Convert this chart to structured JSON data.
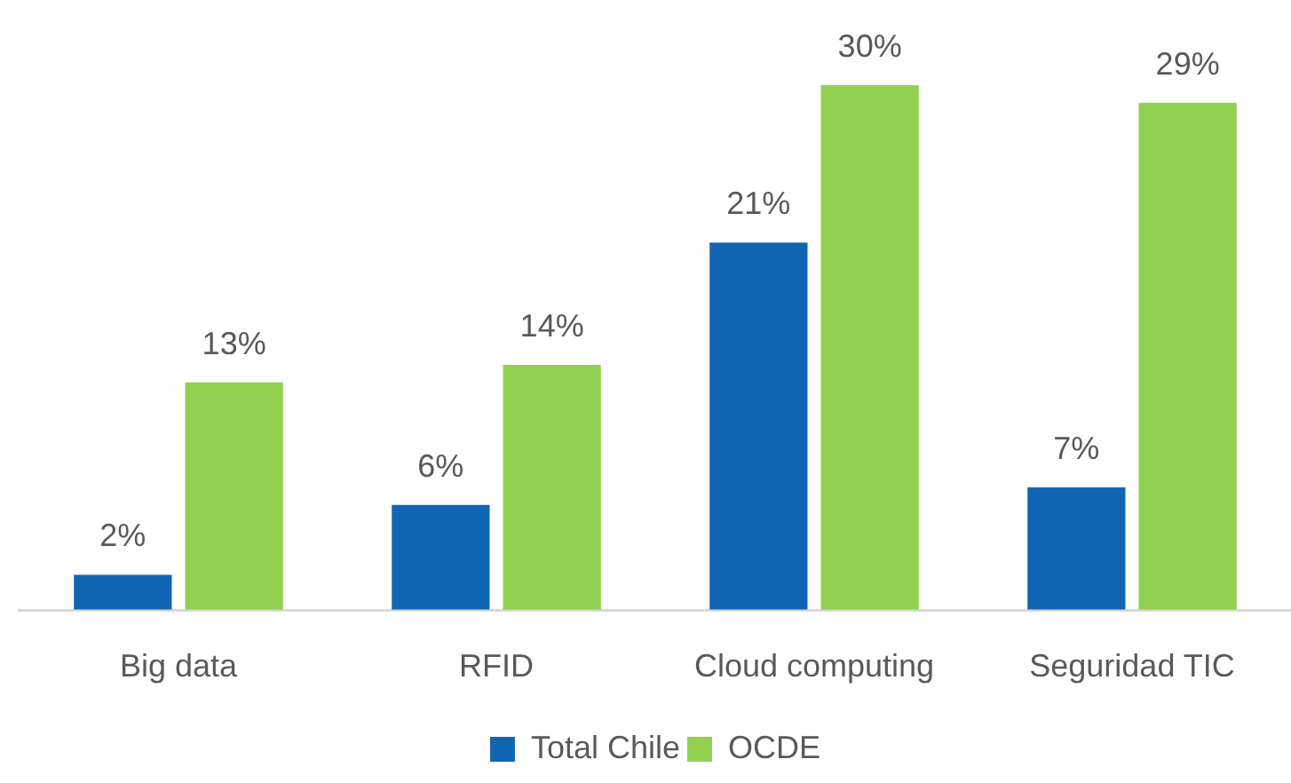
{
  "chart_data": {
    "type": "bar",
    "categories": [
      "Big data",
      "RFID",
      "Cloud computing",
      "Seguridad TIC"
    ],
    "series": [
      {
        "name": "Total Chile",
        "color": "#1166b3",
        "values": [
          2,
          6,
          21,
          7
        ],
        "value_labels": [
          "2%",
          "6%",
          "21%",
          "7%"
        ]
      },
      {
        "name": "OCDE",
        "color": "#92d050",
        "values": [
          13,
          14,
          30,
          29
        ],
        "value_labels": [
          "13%",
          "14%",
          "30%",
          "29%"
        ]
      }
    ],
    "grid": false,
    "legend": "bottom",
    "tick_labels": "x"
  }
}
